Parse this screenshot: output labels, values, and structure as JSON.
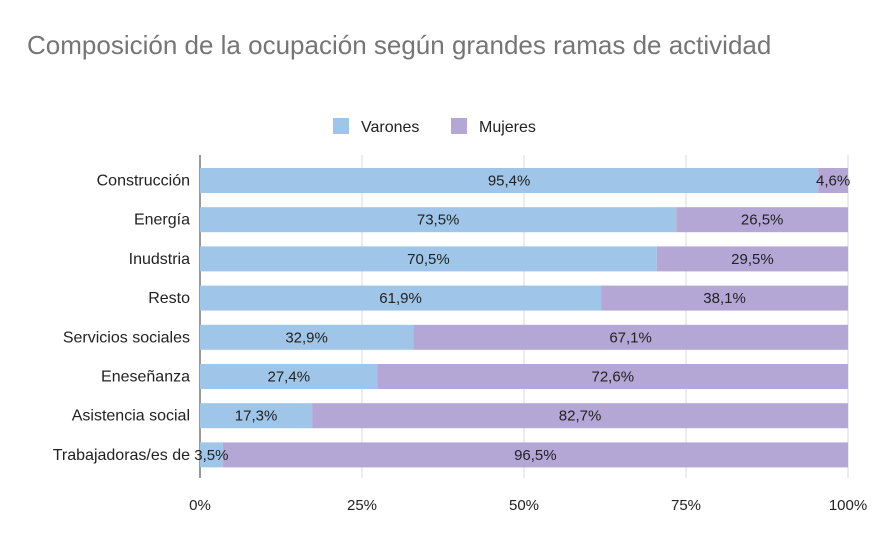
{
  "chart_data": {
    "type": "bar",
    "orientation": "horizontal",
    "stacked": "percent",
    "title": "Composición de la ocupación según grandes ramas de actividad",
    "categories": [
      "Construcción",
      "Energía",
      "Inudstria",
      "Resto",
      "Servicios sociales",
      "Eneseñanza",
      "Asistencia social",
      "Trabajadoras/es de"
    ],
    "series": [
      {
        "name": "Varones",
        "color": "#9fc5e8",
        "values": [
          95.4,
          73.5,
          70.5,
          61.9,
          32.9,
          27.4,
          17.3,
          3.5
        ],
        "labels": [
          "95,4%",
          "73,5%",
          "70,5%",
          "61,9%",
          "32,9%",
          "27,4%",
          "17,3%",
          "3,5%"
        ]
      },
      {
        "name": "Mujeres",
        "color": "#b4a7d6",
        "values": [
          4.6,
          26.5,
          29.5,
          38.1,
          67.1,
          72.6,
          82.7,
          96.5
        ],
        "labels": [
          "4,6%",
          "26,5%",
          "29,5%",
          "38,1%",
          "67,1%",
          "72,6%",
          "82,7%",
          "96,5%"
        ]
      }
    ],
    "xlim": [
      0,
      100
    ],
    "xticks": [
      0,
      25,
      50,
      75,
      100
    ],
    "xtick_labels": [
      "0%",
      "25%",
      "50%",
      "75%",
      "100%"
    ],
    "legend_position": "top",
    "grid": "vertical"
  }
}
